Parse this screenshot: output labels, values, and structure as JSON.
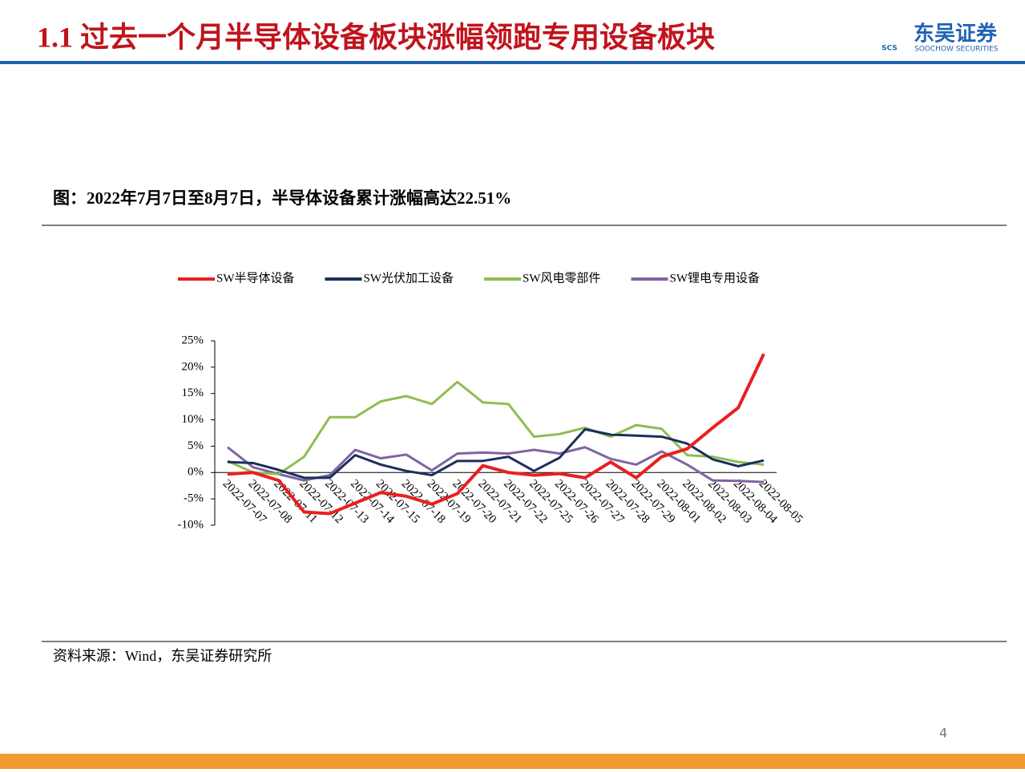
{
  "header": {
    "title": "1.1 过去一个月半导体设备板块涨幅领跑专用设备板块",
    "logo_cn": "东吴证券",
    "logo_mark": "SCS",
    "logo_en": "SOOCHOW SECURITIES"
  },
  "chart_data": {
    "type": "line",
    "title": "图：2022年7月7日至8月7日，半导体设备累计涨幅高达22.51%",
    "categories": [
      "2022-07-07",
      "2022-07-08",
      "2022-07-11",
      "2022-07-12",
      "2022-07-13",
      "2022-07-14",
      "2022-07-15",
      "2022-07-18",
      "2022-07-19",
      "2022-07-20",
      "2022-07-21",
      "2022-07-22",
      "2022-07-25",
      "2022-07-26",
      "2022-07-27",
      "2022-07-28",
      "2022-07-29",
      "2022-08-01",
      "2022-08-02",
      "2022-08-03",
      "2022-08-04",
      "2022-08-05"
    ],
    "series": [
      {
        "name": "SW半导体设备",
        "color": "#e8201f",
        "values": [
          -0.3,
          0,
          -1.5,
          -7.5,
          -7.8,
          -5.8,
          -3.8,
          -4.5,
          -6,
          -4,
          1.3,
          0,
          -0.5,
          -0.2,
          -1,
          2,
          -1,
          3,
          4.5,
          8.5,
          12.3,
          22.51
        ]
      },
      {
        "name": "SW光伏加工设备",
        "color": "#1b2f5b",
        "values": [
          2,
          1.8,
          0.5,
          -1,
          -1,
          3.3,
          1.5,
          0.3,
          -0.5,
          2.2,
          2.2,
          3,
          0.3,
          2.8,
          8.2,
          7.2,
          7,
          6.8,
          5.5,
          2.5,
          1.2,
          2.3
        ]
      },
      {
        "name": "SW风电零部件",
        "color": "#8fbd4f",
        "values": [
          2.2,
          0,
          -0.3,
          3,
          10.5,
          10.5,
          13.5,
          14.5,
          13,
          17.2,
          13.3,
          13,
          6.8,
          7.3,
          8.5,
          6.8,
          9,
          8.3,
          3.3,
          3,
          2,
          1.5
        ]
      },
      {
        "name": "SW锂电专用设备",
        "color": "#8064a2",
        "values": [
          4.8,
          1,
          -0.3,
          -1.5,
          -0.5,
          4.3,
          2.7,
          3.4,
          0.4,
          3.6,
          3.8,
          3.6,
          4.3,
          3.6,
          4.8,
          2.6,
          1.5,
          4,
          1.5,
          -1.5,
          -1.6,
          -1.8
        ]
      }
    ],
    "ylim": [
      -10,
      25
    ],
    "yticks": [
      {
        "value": -10,
        "label": "-10%"
      },
      {
        "value": -5,
        "label": "-5%"
      },
      {
        "value": 0,
        "label": "0%"
      },
      {
        "value": 5,
        "label": "5%"
      },
      {
        "value": 10,
        "label": "10%"
      },
      {
        "value": 15,
        "label": "15%"
      },
      {
        "value": 20,
        "label": "20%"
      },
      {
        "value": 25,
        "label": "25%"
      }
    ],
    "legend": "top",
    "grid": false
  },
  "source": "资料来源：Wind，东吴证券研究所",
  "page_number": "4"
}
